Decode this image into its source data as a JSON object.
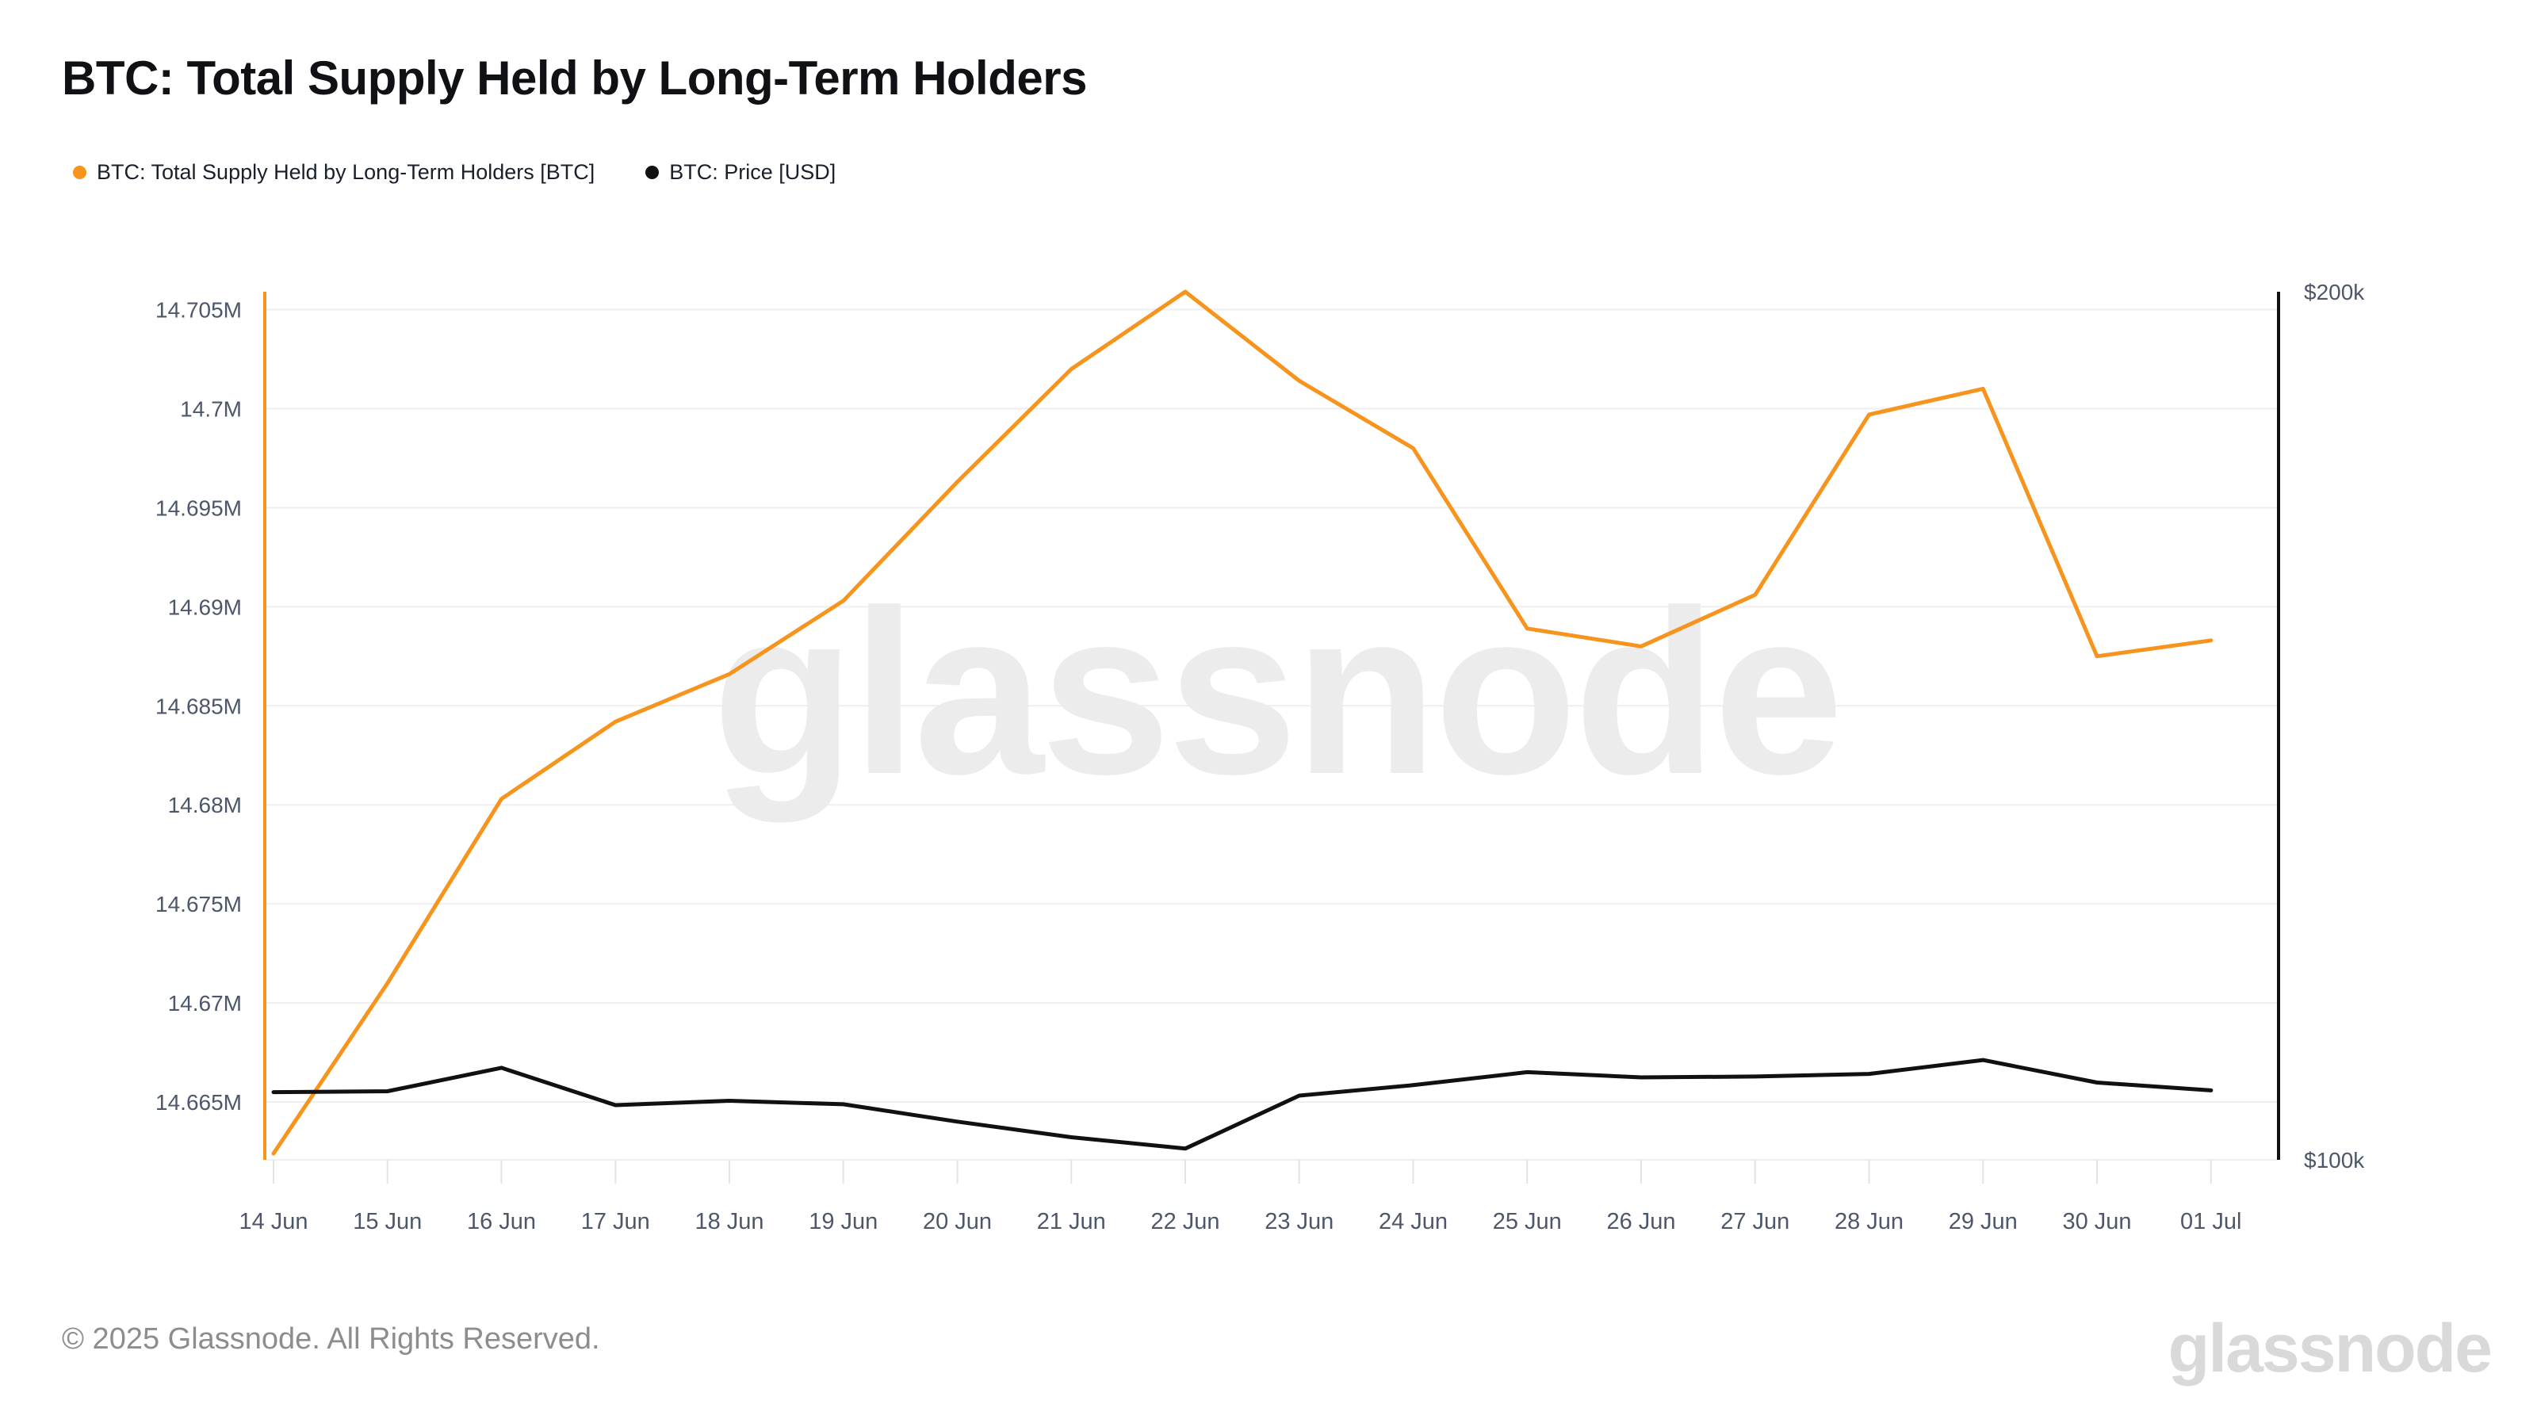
{
  "header": {
    "title": "BTC: Total Supply Held by Long-Term Holders"
  },
  "legend": [
    {
      "label": "BTC: Total Supply Held by Long-Term Holders [BTC]",
      "color": "#f7941d"
    },
    {
      "label": "BTC: Price [USD]",
      "color": "#111111"
    }
  ],
  "watermark": "glassnode",
  "footer": {
    "copyright": "© 2025 Glassnode. All Rights Reserved.",
    "logo": "glassnode"
  },
  "chart_data": {
    "type": "line",
    "title": "BTC: Total Supply Held by Long-Term Holders",
    "categories": [
      "14 Jun",
      "15 Jun",
      "16 Jun",
      "17 Jun",
      "18 Jun",
      "19 Jun",
      "20 Jun",
      "21 Jun",
      "22 Jun",
      "23 Jun",
      "24 Jun",
      "25 Jun",
      "26 Jun",
      "27 Jun",
      "28 Jun",
      "29 Jun",
      "30 Jun",
      "01 Jul"
    ],
    "series": [
      {
        "name": "BTC: Total Supply Held by Long-Term Holders [BTC]",
        "color": "#f7941d",
        "axis": "left",
        "unit": "M BTC",
        "values": [
          14.6624,
          14.671,
          14.6803,
          14.6842,
          14.6866,
          14.6903,
          14.6963,
          14.702,
          14.7059,
          14.7014,
          14.698,
          14.6889,
          14.688,
          14.6906,
          14.6997,
          14.701,
          14.6875,
          14.6883
        ]
      },
      {
        "name": "BTC: Price [USD]",
        "color": "#111111",
        "axis": "right",
        "unit": "USD",
        "values": [
          107800,
          107900,
          110600,
          106300,
          106800,
          106400,
          104400,
          102600,
          101300,
          107400,
          108600,
          110100,
          109500,
          109600,
          109900,
          111500,
          108900,
          108000
        ]
      }
    ],
    "left_axis": {
      "color": "#f7941d",
      "range": [
        14.66208,
        14.7059
      ],
      "ticks": [
        {
          "label": "14.705M",
          "value": 14.705
        },
        {
          "label": "14.7M",
          "value": 14.7
        },
        {
          "label": "14.695M",
          "value": 14.695
        },
        {
          "label": "14.69M",
          "value": 14.69
        },
        {
          "label": "14.685M",
          "value": 14.685
        },
        {
          "label": "14.68M",
          "value": 14.68
        },
        {
          "label": "14.675M",
          "value": 14.675
        },
        {
          "label": "14.67M",
          "value": 14.67
        },
        {
          "label": "14.665M",
          "value": 14.665
        }
      ]
    },
    "right_axis": {
      "color": "#111111",
      "range": [
        100000,
        200000
      ],
      "ticks": [
        {
          "label": "$200k",
          "value": 200000
        },
        {
          "label": "$100k",
          "value": 100000
        }
      ]
    },
    "grid": true,
    "legend_position": "top-left"
  },
  "colors": {
    "grid": "#efefef",
    "tick_mark": "#e4e4e4",
    "axis_label": "#4d5769",
    "watermark": "#ececec"
  }
}
